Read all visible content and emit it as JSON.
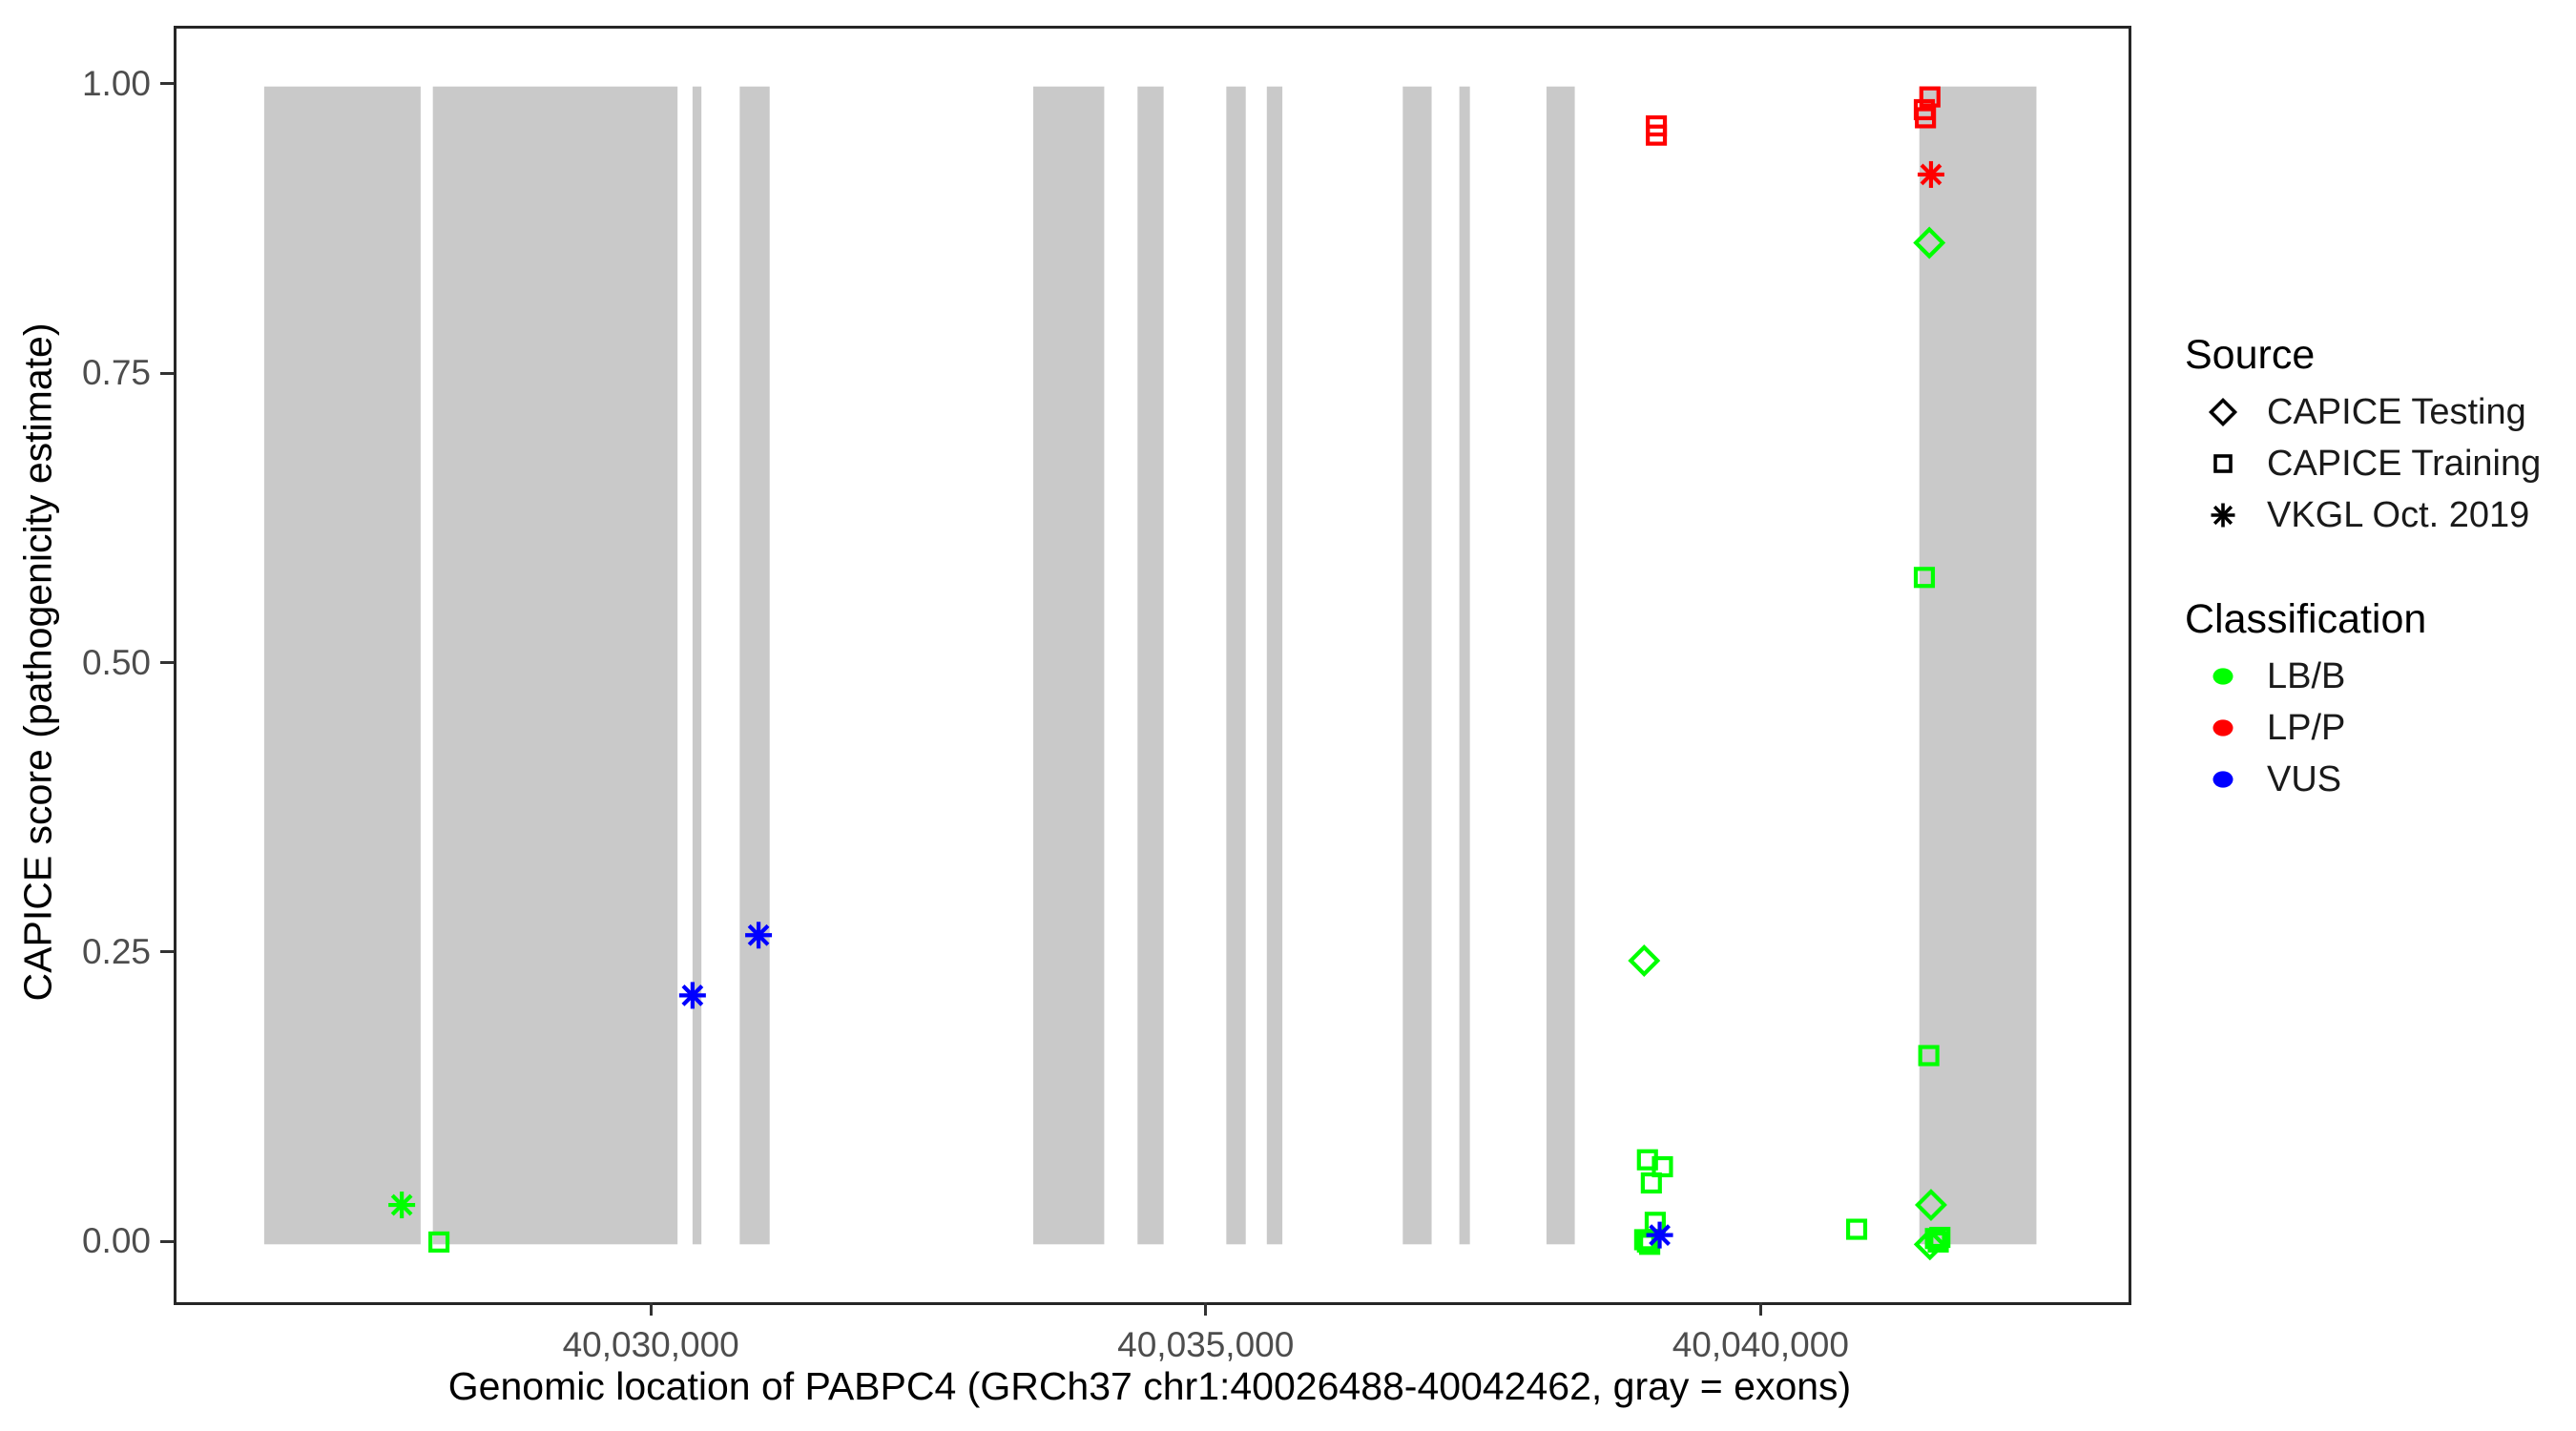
{
  "chart_data": {
    "type": "scatter",
    "title": "",
    "xlabel": "Genomic location of PABPC4 (GRCh37 chr1:40026488-40042462, gray = exons)",
    "ylabel": "CAPICE score (pathogenicity estimate)",
    "x_domain": [
      40025700,
      40043290
    ],
    "y_domain": [
      -0.05,
      1.05
    ],
    "x_ticks": [
      {
        "value": 40030000,
        "label": "40,030,000"
      },
      {
        "value": 40035000,
        "label": "40,035,000"
      },
      {
        "value": 40040000,
        "label": "40,040,000"
      }
    ],
    "y_ticks": [
      {
        "value": 0.0,
        "label": "0.00"
      },
      {
        "value": 0.25,
        "label": "0.25"
      },
      {
        "value": 0.5,
        "label": "0.50"
      },
      {
        "value": 0.75,
        "label": "0.75"
      },
      {
        "value": 1.0,
        "label": "1.00"
      }
    ],
    "grid": false,
    "legend_position": "right",
    "exon_color": "#c9c9c9",
    "exons": [
      [
        40026490,
        40027900
      ],
      [
        40028010,
        40030215
      ],
      [
        40030350,
        40030430
      ],
      [
        40030775,
        40031045
      ],
      [
        40033420,
        40034060
      ],
      [
        40034360,
        40034595
      ],
      [
        40035160,
        40035335
      ],
      [
        40035525,
        40035665
      ],
      [
        40036750,
        40037010
      ],
      [
        40037260,
        40037355
      ],
      [
        40038045,
        40038300
      ],
      [
        40041405,
        40042460
      ]
    ],
    "source_shapes": {
      "CAPICE Testing": "diamond",
      "CAPICE Training": "square",
      "VKGL Oct. 2019": "asterisk"
    },
    "classification_colors": {
      "LB/B": "#00ff00",
      "LP/P": "#ff0000",
      "VUS": "#0000ff"
    },
    "points": [
      {
        "x": 40028065,
        "y": 0.002,
        "source": "CAPICE Training",
        "classification": "LB/B"
      },
      {
        "x": 40039035,
        "y": 0.966,
        "source": "CAPICE Training",
        "classification": "LP/P"
      },
      {
        "x": 40039035,
        "y": 0.958,
        "source": "CAPICE Training",
        "classification": "LP/P"
      },
      {
        "x": 40038925,
        "y": 0.245,
        "source": "CAPICE Testing",
        "classification": "LB/B"
      },
      {
        "x": 40038955,
        "y": 0.073,
        "source": "CAPICE Training",
        "classification": "LB/B"
      },
      {
        "x": 40039090,
        "y": 0.067,
        "source": "CAPICE Training",
        "classification": "LB/B"
      },
      {
        "x": 40038990,
        "y": 0.053,
        "source": "CAPICE Training",
        "classification": "LB/B"
      },
      {
        "x": 40039025,
        "y": 0.019,
        "source": "CAPICE Training",
        "classification": "LB/B"
      },
      {
        "x": 40038930,
        "y": 0.004,
        "source": "CAPICE Training",
        "classification": "LB/B"
      },
      {
        "x": 40038955,
        "y": 0.002,
        "source": "CAPICE Training",
        "classification": "LB/B"
      },
      {
        "x": 40038975,
        "y": 0.0,
        "source": "CAPICE Training",
        "classification": "LB/B"
      },
      {
        "x": 40040840,
        "y": 0.013,
        "source": "CAPICE Training",
        "classification": "LB/B"
      },
      {
        "x": 40041500,
        "y": 0.991,
        "source": "CAPICE Training",
        "classification": "LP/P"
      },
      {
        "x": 40041450,
        "y": 0.98,
        "source": "CAPICE Training",
        "classification": "LP/P"
      },
      {
        "x": 40041460,
        "y": 0.973,
        "source": "CAPICE Training",
        "classification": "LP/P"
      },
      {
        "x": 40041495,
        "y": 0.865,
        "source": "CAPICE Testing",
        "classification": "LB/B"
      },
      {
        "x": 40041450,
        "y": 0.576,
        "source": "CAPICE Training",
        "classification": "LB/B"
      },
      {
        "x": 40041490,
        "y": 0.163,
        "source": "CAPICE Training",
        "classification": "LB/B"
      },
      {
        "x": 40041510,
        "y": 0.034,
        "source": "CAPICE Testing",
        "classification": "LB/B"
      },
      {
        "x": 40041500,
        "y": 0.0,
        "source": "CAPICE Testing",
        "classification": "LB/B"
      },
      {
        "x": 40041550,
        "y": 0.005,
        "source": "CAPICE Training",
        "classification": "LB/B"
      },
      {
        "x": 40041590,
        "y": 0.006,
        "source": "CAPICE Training",
        "classification": "LB/B"
      },
      {
        "x": 40041575,
        "y": 0.002,
        "source": "CAPICE Training",
        "classification": "LB/B"
      },
      {
        "x": 40027730,
        "y": 0.034,
        "source": "VKGL Oct. 2019",
        "classification": "LB/B"
      },
      {
        "x": 40030350,
        "y": 0.215,
        "source": "VKGL Oct. 2019",
        "classification": "VUS"
      },
      {
        "x": 40030945,
        "y": 0.267,
        "source": "VKGL Oct. 2019",
        "classification": "VUS"
      },
      {
        "x": 40039065,
        "y": 0.008,
        "source": "VKGL Oct. 2019",
        "classification": "VUS"
      },
      {
        "x": 40041510,
        "y": 0.924,
        "source": "VKGL Oct. 2019",
        "classification": "LP/P"
      }
    ]
  },
  "legend": {
    "source": {
      "title": "Source",
      "items": [
        {
          "label": "CAPICE Testing",
          "shape": "diamond",
          "color": "#000000"
        },
        {
          "label": "CAPICE Training",
          "shape": "square",
          "color": "#000000"
        },
        {
          "label": "VKGL Oct. 2019",
          "shape": "asterisk",
          "color": "#000000"
        }
      ]
    },
    "classification": {
      "title": "Classification",
      "items": [
        {
          "label": "LB/B",
          "shape": "circle",
          "color": "#00ff00"
        },
        {
          "label": "LP/P",
          "shape": "circle",
          "color": "#ff0000"
        },
        {
          "label": "VUS",
          "shape": "circle",
          "color": "#0000ff"
        }
      ]
    }
  }
}
